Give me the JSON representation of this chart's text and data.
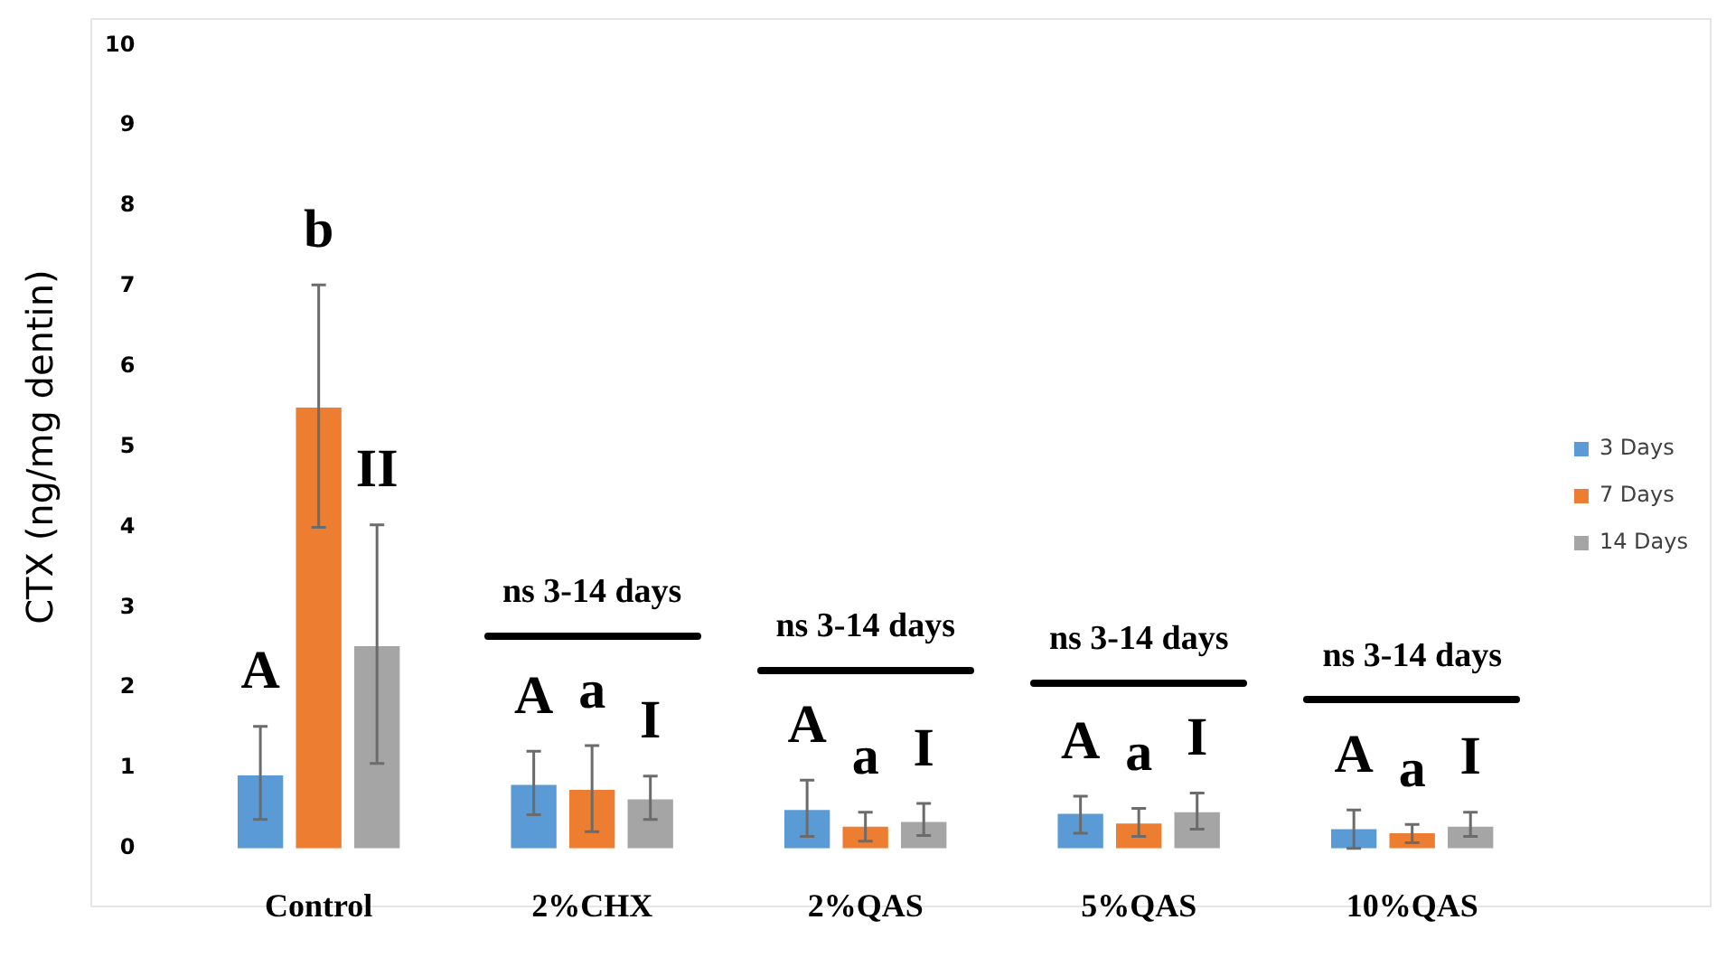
{
  "chart_data": {
    "type": "bar",
    "ylabel": "CTX (ng/mg dentin)",
    "categories": [
      "Control",
      "2%CHX",
      "2%QAS",
      "5%QAS",
      "10%QAS"
    ],
    "ylim": [
      0,
      10
    ],
    "yticks": [
      0,
      1,
      2,
      3,
      4,
      5,
      6,
      7,
      8,
      9,
      10
    ],
    "grid": false,
    "legend": "right",
    "series": [
      {
        "name": "3 Days",
        "color": "#5b9bd5",
        "values": [
          0.91,
          0.79,
          0.48,
          0.43,
          0.24
        ],
        "errors": [
          [
            0.36,
            1.52
          ],
          [
            0.42,
            1.21
          ],
          [
            0.15,
            0.85
          ],
          [
            0.19,
            0.65
          ],
          [
            0,
            0.48
          ]
        ]
      },
      {
        "name": "7 Days",
        "color": "#ed7d31",
        "values": [
          5.49,
          0.73,
          0.27,
          0.31,
          0.19
        ],
        "errors": [
          [
            4.0,
            7.02
          ],
          [
            0.21,
            1.28
          ],
          [
            0.09,
            0.45
          ],
          [
            0.15,
            0.5
          ],
          [
            0.07,
            0.3
          ]
        ]
      },
      {
        "name": "14 Days",
        "color": "#a5a5a5",
        "values": [
          2.52,
          0.61,
          0.33,
          0.45,
          0.27
        ],
        "errors": [
          [
            1.06,
            4.03
          ],
          [
            0.36,
            0.9
          ],
          [
            0.16,
            0.56
          ],
          [
            0.24,
            0.69
          ],
          [
            0.15,
            0.45
          ]
        ]
      }
    ],
    "annotations": [
      "A",
      "b",
      "II",
      "A",
      "a",
      "I",
      "A",
      "a",
      "I",
      "A",
      "a",
      "I",
      "A",
      "a",
      "I",
      "ns 3-14 days",
      "ns 3-14 days",
      "ns 3-14 days",
      "ns 3-14 days"
    ]
  }
}
